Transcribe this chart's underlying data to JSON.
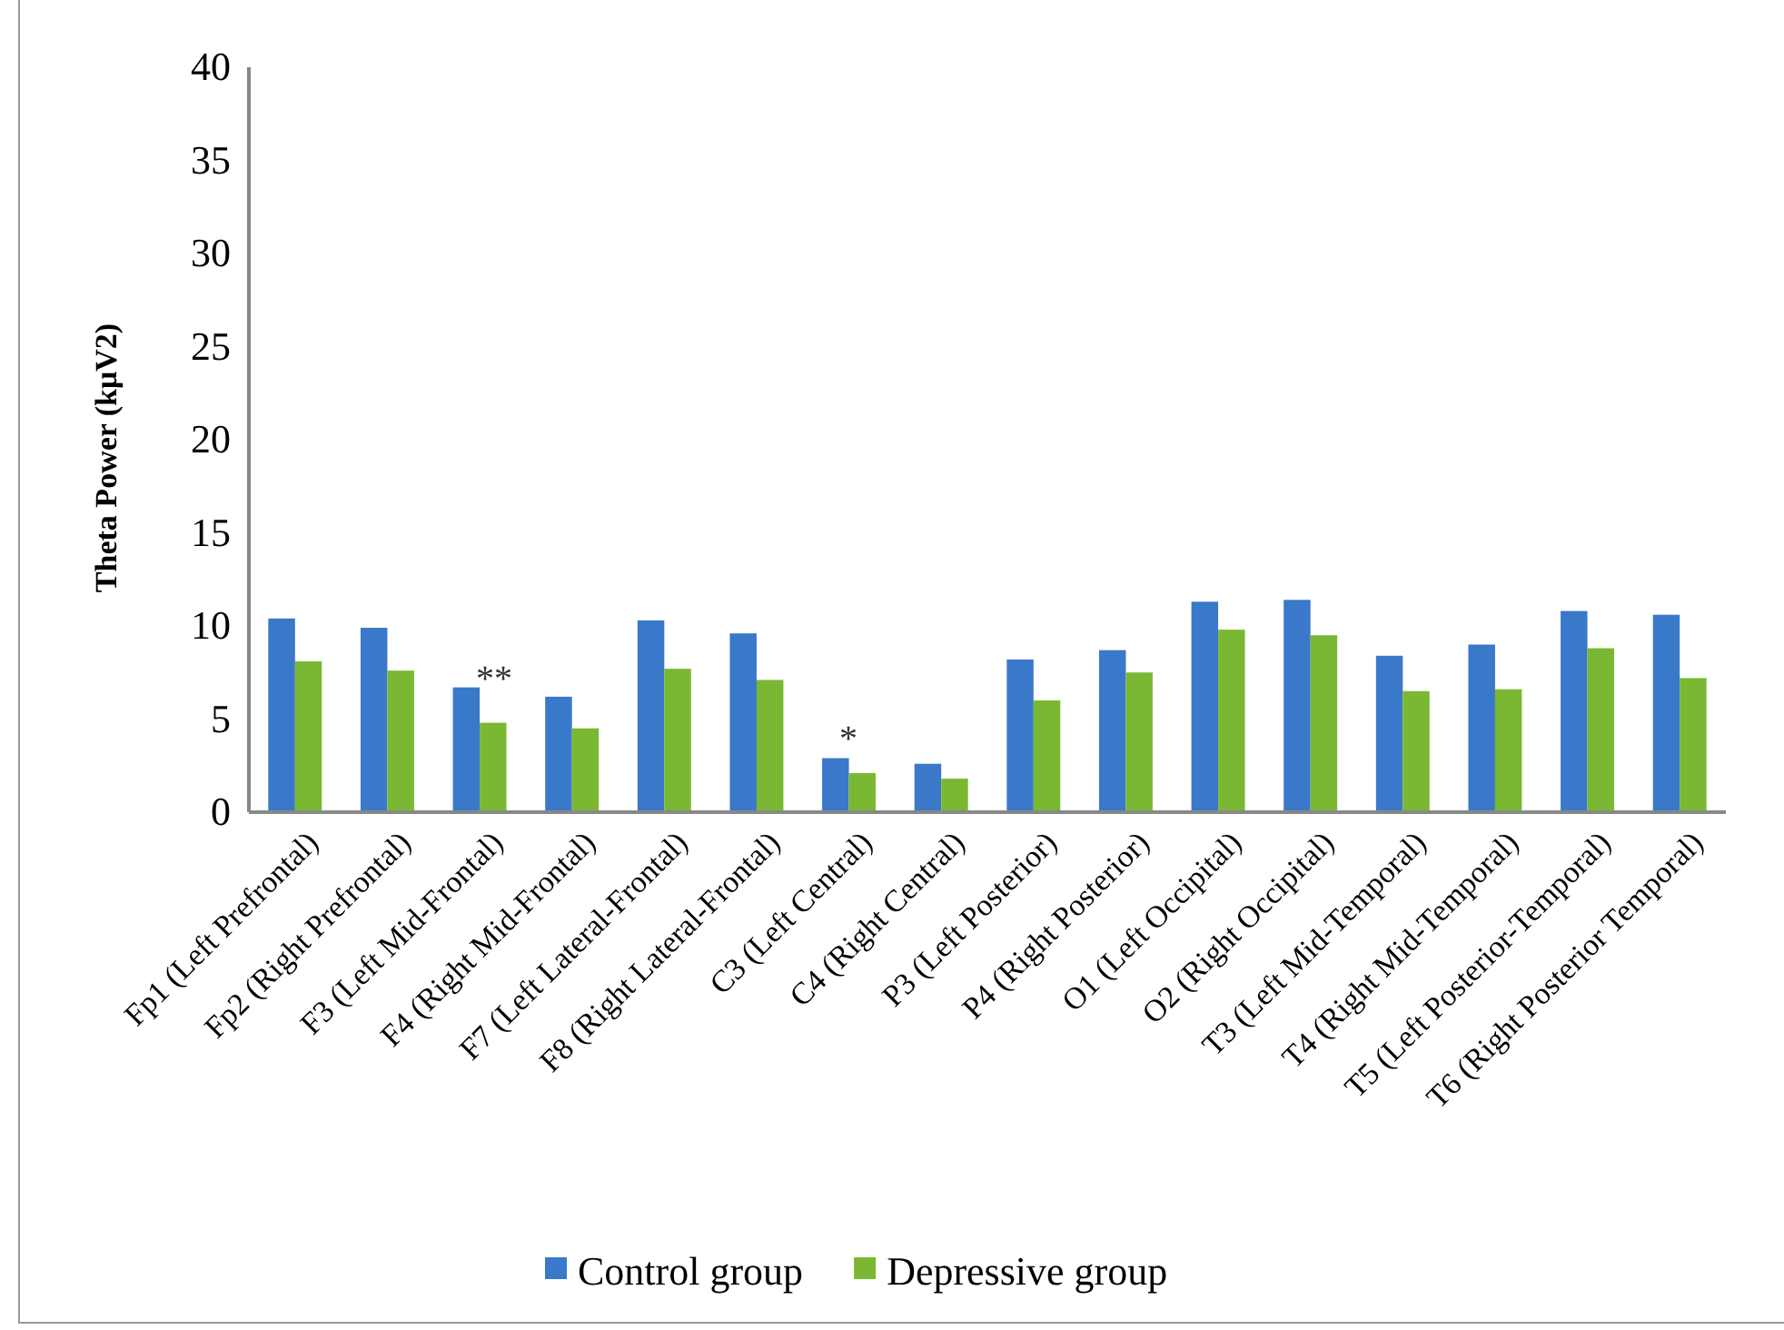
{
  "chart_data": {
    "type": "bar",
    "ylabel": "Theta Power (kμV2)",
    "categories": [
      "Fp1 (Left Prefrontal)",
      "Fp2 (Right Prefrontal)",
      "F3 (Left Mid-Frontal)",
      "F4 (Right Mid-Frontal)",
      "F7 (Left Lateral-Frontal)",
      "F8 (Right Lateral-Frontal)",
      "C3 (Left Central)",
      "C4 (Right Central)",
      "P3 (Left Posterior)",
      "P4 (Right Posterior)",
      "O1 (Left Occipital)",
      "O2 (Right Occipital)",
      "T3 (Left Mid-Temporal)",
      "T4 (Right Mid-Temporal)",
      "T5 (Left Posterior-Temporal)",
      "T6 (Right Posterior Temporal)"
    ],
    "series": [
      {
        "name": "Control group",
        "color": "#3a78c9",
        "values": [
          10.4,
          9.9,
          6.7,
          6.2,
          10.3,
          9.6,
          2.9,
          2.6,
          8.2,
          8.7,
          11.3,
          11.4,
          8.4,
          9.0,
          10.8,
          10.6
        ]
      },
      {
        "name": "Depressive group",
        "color": "#7ab833",
        "values": [
          8.1,
          7.6,
          4.8,
          4.5,
          7.7,
          7.1,
          2.1,
          1.8,
          6.0,
          7.5,
          9.8,
          9.5,
          6.5,
          6.6,
          8.8,
          7.2
        ]
      }
    ],
    "ylim": [
      0,
      40
    ],
    "yticks": [
      0,
      5,
      10,
      15,
      20,
      25,
      30,
      35,
      40
    ],
    "grid": false,
    "legend": "bottom",
    "annotations": [
      "**",
      "*"
    ]
  }
}
